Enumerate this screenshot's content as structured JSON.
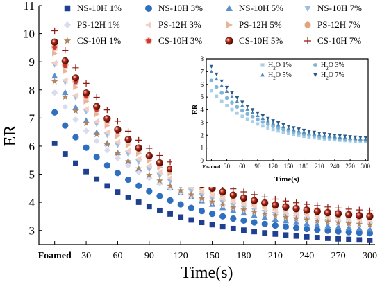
{
  "chart_data": [
    {
      "type": "scatter",
      "title": "",
      "xlabel": "Time(s)",
      "ylabel": "ER",
      "xlim": [
        -15,
        305
      ],
      "ylim": [
        2.5,
        11
      ],
      "x_ticks": [
        {
          "value": 0,
          "label": "Foamed"
        },
        {
          "value": 30,
          "label": "30"
        },
        {
          "value": 60,
          "label": "60"
        },
        {
          "value": 90,
          "label": "90"
        },
        {
          "value": 120,
          "label": "120"
        },
        {
          "value": 150,
          "label": "150"
        },
        {
          "value": 180,
          "label": "180"
        },
        {
          "value": 210,
          "label": "210"
        },
        {
          "value": 240,
          "label": "240"
        },
        {
          "value": 270,
          "label": "270"
        },
        {
          "value": 300,
          "label": "300"
        }
      ],
      "y_ticks": [
        3,
        4,
        5,
        6,
        7,
        8,
        9,
        10,
        11
      ],
      "legend_placement": "top",
      "x": [
        0,
        10,
        20,
        30,
        40,
        50,
        60,
        70,
        80,
        90,
        100,
        110,
        120,
        130,
        140,
        150,
        160,
        170,
        180,
        190,
        200,
        210,
        220,
        230,
        240,
        250,
        260,
        270,
        280,
        290,
        300
      ],
      "series": [
        {
          "name": "NS-10H 1%",
          "marker": "square",
          "color": "#1f3f8f",
          "start": 6.1,
          "end": 2.65
        },
        {
          "name": "NS-10H 3%",
          "marker": "circle",
          "color": "#2f6fbf",
          "start": 7.2,
          "end": 2.9
        },
        {
          "name": "NS-10H 5%",
          "marker": "triangle-up",
          "color": "#5b8fd0",
          "start": 8.5,
          "end": 3.05
        },
        {
          "name": "NS-10H 7%",
          "marker": "triangle-down",
          "color": "#9dbde3",
          "start": 8.9,
          "end": 3.2
        },
        {
          "name": "PS-12H 1%",
          "marker": "diamond",
          "color": "#d7dcf2",
          "start": 7.9,
          "end": 3.25
        },
        {
          "name": "PS-12H 3%",
          "marker": "triangle-left",
          "color": "#f2cfc3",
          "start": 8.95,
          "end": 3.35
        },
        {
          "name": "PS-12H 5%",
          "marker": "triangle-right",
          "color": "#e8b49a",
          "start": 9.3,
          "end": 3.45
        },
        {
          "name": "PS-12H 7%",
          "marker": "hexagon",
          "color": "#e0a37a",
          "start": 9.6,
          "end": 3.55
        },
        {
          "name": "CS-10H 1%",
          "marker": "star",
          "color": "#b0855c",
          "start": 8.3,
          "end": 3.2
        },
        {
          "name": "CS-10H 3%",
          "marker": "pentagon",
          "color": "#cc3a2a",
          "start": 9.5,
          "end": 3.55
        },
        {
          "name": "CS-10H 5%",
          "marker": "ball",
          "color": "#8b1a10",
          "start": 9.7,
          "end": 3.5
        },
        {
          "name": "CS-10H 7%",
          "marker": "plus",
          "color": "#8b1a10",
          "start": 10.1,
          "end": 3.7
        }
      ]
    },
    {
      "type": "scatter",
      "title": "",
      "xlabel": "Time(s)",
      "ylabel": "ER",
      "xlim": [
        -10,
        305
      ],
      "ylim": [
        0,
        8
      ],
      "x_ticks": [
        {
          "value": 0,
          "label": "Foamed"
        },
        {
          "value": 30,
          "label": "30"
        },
        {
          "value": 60,
          "label": "60"
        },
        {
          "value": 90,
          "label": "90"
        },
        {
          "value": 120,
          "label": "120"
        },
        {
          "value": 150,
          "label": "150"
        },
        {
          "value": 180,
          "label": "180"
        },
        {
          "value": 210,
          "label": "210"
        },
        {
          "value": 240,
          "label": "240"
        },
        {
          "value": 270,
          "label": "270"
        },
        {
          "value": 300,
          "label": "300"
        }
      ],
      "y_ticks": [
        0,
        1,
        2,
        3,
        4,
        5,
        6,
        7,
        8
      ],
      "legend_placement": "top-right",
      "x": [
        0,
        10,
        20,
        30,
        40,
        50,
        60,
        70,
        80,
        90,
        100,
        110,
        120,
        130,
        140,
        150,
        160,
        170,
        180,
        190,
        200,
        210,
        220,
        230,
        240,
        250,
        260,
        270,
        280,
        290,
        300
      ],
      "series": [
        {
          "name": "H2O 1%",
          "sub": "2",
          "marker": "square",
          "color": "#a8cfe8",
          "start": 5.5,
          "end": 1.5
        },
        {
          "name": "H2O 3%",
          "sub": "2",
          "marker": "circle",
          "color": "#7fb5d8",
          "start": 6.3,
          "end": 1.6
        },
        {
          "name": "H2O 5%",
          "sub": "2",
          "marker": "triangle-up",
          "color": "#4f86b8",
          "start": 7.0,
          "end": 1.7
        },
        {
          "name": "H2O 7%",
          "sub": "2",
          "marker": "triangle-down",
          "color": "#2b5a8a",
          "start": 7.4,
          "end": 1.8
        }
      ]
    }
  ]
}
